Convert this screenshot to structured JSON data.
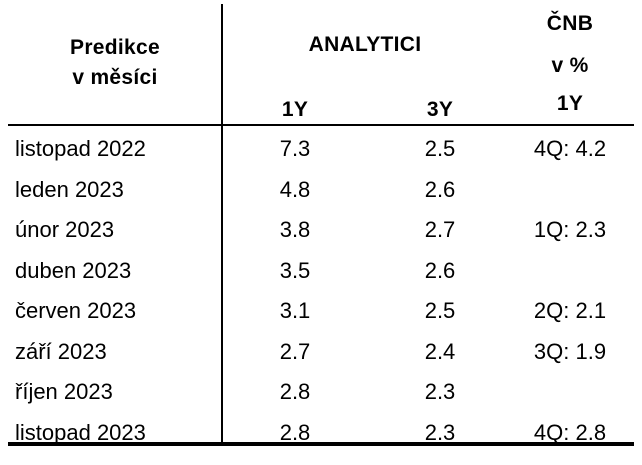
{
  "chart_data": {
    "type": "table",
    "headers": {
      "period": [
        "Predikce",
        "v měsíci"
      ],
      "group": "ANALYTICI",
      "col_1y": "1Y",
      "col_3y": "3Y",
      "cnb": [
        "ČNB",
        "v %",
        "1Y"
      ]
    },
    "rows": [
      {
        "period": "listopad 2022",
        "y1": "7.3",
        "y3": "2.5",
        "cnb": "4Q: 4.2"
      },
      {
        "period": "leden 2023",
        "y1": "4.8",
        "y3": "2.6",
        "cnb": ""
      },
      {
        "period": "únor 2023",
        "y1": "3.8",
        "y3": "2.7",
        "cnb": "1Q: 2.3"
      },
      {
        "period": "duben 2023",
        "y1": "3.5",
        "y3": "2.6",
        "cnb": ""
      },
      {
        "period": "červen 2023",
        "y1": "3.1",
        "y3": "2.5",
        "cnb": "2Q: 2.1"
      },
      {
        "period": "září 2023",
        "y1": "2.7",
        "y3": "2.4",
        "cnb": "3Q: 1.9"
      },
      {
        "period": "říjen 2023",
        "y1": "2.8",
        "y3": "2.3",
        "cnb": ""
      },
      {
        "period": "listopad 2023",
        "y1": "2.8",
        "y3": "2.3",
        "cnb": "4Q: 2.8"
      }
    ]
  }
}
